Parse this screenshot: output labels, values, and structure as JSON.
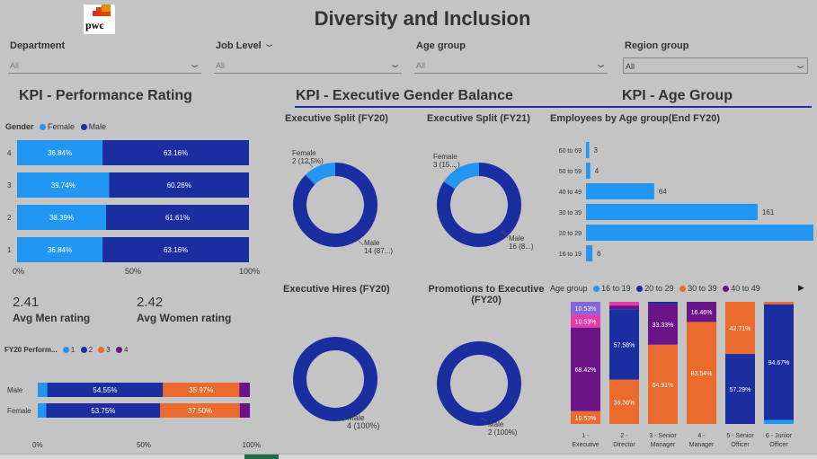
{
  "title": "Diversity and Inclusion",
  "logo_text": "pwc",
  "filters": [
    {
      "label": "Department",
      "value": "All"
    },
    {
      "label": "Job Level",
      "value": "All"
    },
    {
      "label": "Age group",
      "value": "All"
    },
    {
      "label": "Region group",
      "value": "All"
    }
  ],
  "sections": {
    "perf": "KPI - Performance Rating",
    "gender": "KPI - Executive Gender Balance",
    "age": "KPI - Age Group"
  },
  "avg": {
    "men_value": "2.41",
    "men_label": "Avg Men rating",
    "women_value": "2.42",
    "women_label": "Avg Women rating"
  },
  "colors": {
    "female": "#2196f3",
    "male": "#1a2ea0",
    "c16_19": "#2196f3",
    "c20_29": "#1a2ea0",
    "c30_39": "#ea6b2d",
    "c40_49": "#6b1487",
    "pink": "#e23da8",
    "purple_light": "#8466d8"
  },
  "chart_data": [
    {
      "type": "bar",
      "orientation": "horizontal",
      "stacked": "100%",
      "legend_title": "Gender",
      "categories": [
        "4",
        "3",
        "2",
        "1"
      ],
      "series": [
        {
          "name": "Female",
          "values": [
            36.84,
            39.74,
            38.39,
            36.84
          ],
          "labels": [
            "36.84%",
            "39.74%",
            "38.39%",
            "36.84%"
          ]
        },
        {
          "name": "Male",
          "values": [
            63.16,
            60.26,
            61.61,
            63.16
          ],
          "labels": [
            "63.16%",
            "60.26%",
            "61.61%",
            "63.16%"
          ]
        }
      ],
      "ticks": [
        "0%",
        "50%",
        "100%"
      ]
    },
    {
      "type": "bar",
      "orientation": "horizontal",
      "stacked": "100%",
      "legend_title": "FY20 Perform...",
      "categories": [
        "Male",
        "Female"
      ],
      "series": [
        {
          "name": "1",
          "values": [
            4.5,
            4.0
          ],
          "labels": [
            "",
            ""
          ]
        },
        {
          "name": "2",
          "values": [
            54.55,
            53.75
          ],
          "labels": [
            "54.55%",
            "53.75%"
          ]
        },
        {
          "name": "3",
          "values": [
            35.97,
            37.5
          ],
          "labels": [
            "35.97%",
            "37.50%"
          ]
        },
        {
          "name": "4",
          "values": [
            4.98,
            4.75
          ],
          "labels": [
            "",
            ""
          ]
        }
      ],
      "ticks": [
        "0%",
        "50%",
        "100%"
      ]
    },
    {
      "type": "pie",
      "donut": true,
      "title": "Executive Split (FY20)",
      "slices": [
        {
          "name": "Female",
          "value": 2,
          "label_line1": "Female",
          "label_line2": "2 (12.5%)"
        },
        {
          "name": "Male",
          "value": 14,
          "label_line1": "Male",
          "label_line2": "14 (87...)"
        }
      ]
    },
    {
      "type": "pie",
      "donut": true,
      "title": "Executive Split (FY21)",
      "slices": [
        {
          "name": "Female",
          "value": 3,
          "label_line1": "Female",
          "label_line2": "3 (15....)"
        },
        {
          "name": "Male",
          "value": 16,
          "label_line1": "Male",
          "label_line2": "16 (8...)"
        }
      ]
    },
    {
      "type": "pie",
      "donut": true,
      "title": "Executive Hires (FY20)",
      "slices": [
        {
          "name": "Male",
          "value": 4,
          "label_line1": "Male",
          "label_line2": "4 (100%)"
        }
      ]
    },
    {
      "type": "pie",
      "donut": true,
      "title": "Promotions to Executive (FY20)",
      "title_line1": "Promotions to Executive",
      "title_line2": "(FY20)",
      "slices": [
        {
          "name": "Male",
          "value": 2,
          "label_line1": "Male",
          "label_line2": "2 (100%)"
        }
      ]
    },
    {
      "type": "bar",
      "orientation": "horizontal",
      "title": "Employees by Age group(End FY20)",
      "categories": [
        "60 to 69",
        "50 to 59",
        "40 to 49",
        "30 to 39",
        "20 to 29",
        "16 to 19"
      ],
      "values": [
        3,
        4,
        64,
        161,
        215,
        6
      ],
      "xlim": [
        0,
        215
      ]
    },
    {
      "type": "bar",
      "orientation": "vertical",
      "stacked": "100%",
      "legend_title": "Age group",
      "legend": [
        "16 to 19",
        "20 to 29",
        "30 to 39",
        "40 to 49"
      ],
      "categories": [
        {
          "line1": "1 -",
          "line2": "Executive"
        },
        {
          "line1": "2 -",
          "line2": "Director"
        },
        {
          "line1": "3 - Senior",
          "line2": "Manager"
        },
        {
          "line1": "4 -",
          "line2": "Manager"
        },
        {
          "line1": "5 - Senior",
          "line2": "Officer"
        },
        {
          "line1": "6 - Junior",
          "line2": "Officer"
        }
      ],
      "stacks": [
        [
          {
            "c": "c30_39",
            "v": 10.53,
            "l": "10.53%"
          },
          {
            "c": "c40_49",
            "v": 68.42,
            "l": "68.42%"
          },
          {
            "c": "pink",
            "v": 10.53,
            "l": "10.53%"
          },
          {
            "c": "purple_light",
            "v": 10.53,
            "l": "10.53%"
          }
        ],
        [
          {
            "c": "c30_39",
            "v": 36.36,
            "l": "36.36%"
          },
          {
            "c": "c20_29",
            "v": 57.58,
            "l": "57.58%"
          },
          {
            "c": "c40_49",
            "v": 3.03,
            "l": ""
          },
          {
            "c": "pink",
            "v": 3.03,
            "l": ""
          }
        ],
        [
          {
            "c": "c30_39",
            "v": 64.91,
            "l": "64.91%"
          },
          {
            "c": "c40_49",
            "v": 33.33,
            "l": "33.33%"
          },
          {
            "c": "c20_29",
            "v": 1.76,
            "l": ""
          }
        ],
        [
          {
            "c": "c30_39",
            "v": 83.54,
            "l": "83.54%"
          },
          {
            "c": "c40_49",
            "v": 16.46,
            "l": "16.46%"
          }
        ],
        [
          {
            "c": "c20_29",
            "v": 57.29,
            "l": "57.29%"
          },
          {
            "c": "c30_39",
            "v": 42.71,
            "l": "42.71%"
          }
        ],
        [
          {
            "c": "c16_19",
            "v": 3.33,
            "l": ""
          },
          {
            "c": "c20_29",
            "v": 94.67,
            "l": "94.67%"
          },
          {
            "c": "c30_39",
            "v": 2.0,
            "l": ""
          }
        ]
      ]
    }
  ]
}
